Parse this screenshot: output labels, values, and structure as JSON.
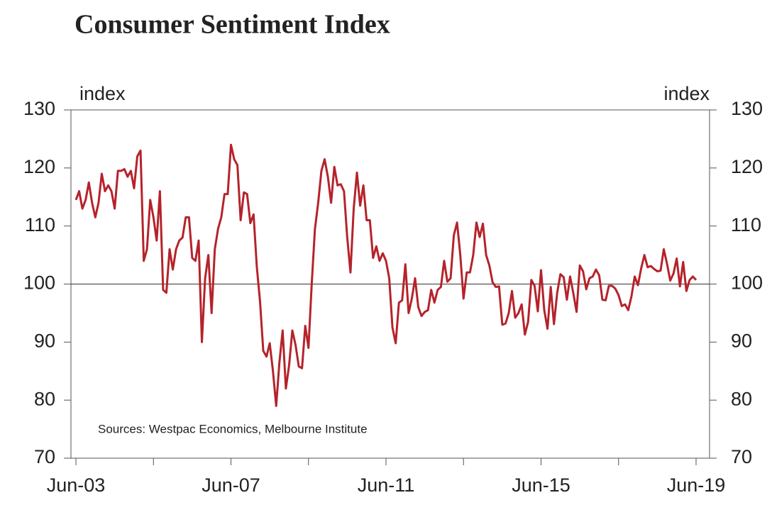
{
  "chart_data": {
    "type": "line",
    "title": "Consumer Sentiment Index",
    "ylabel": "index",
    "y2label": "index",
    "annotation": "Sources: Westpac Economics, Melbourne Institute",
    "categories": [
      "Jun-03",
      null,
      null,
      null,
      null,
      null,
      null,
      null,
      null,
      null,
      null,
      null,
      null,
      null,
      null,
      null,
      null,
      null,
      null,
      null,
      null,
      null,
      null,
      null,
      null,
      null,
      null,
      null,
      null,
      null,
      null,
      null,
      null,
      null,
      null,
      null,
      null,
      null,
      null,
      null,
      null,
      null,
      null,
      null,
      null,
      null,
      null,
      null,
      "Jun-07",
      null,
      null,
      null,
      null,
      null,
      null,
      null,
      null,
      null,
      null,
      null,
      null,
      null,
      null,
      null,
      null,
      null,
      null,
      null,
      null,
      null,
      null,
      null,
      null,
      null,
      null,
      null,
      null,
      null,
      null,
      null,
      null,
      null,
      null,
      null,
      null,
      null,
      null,
      null,
      null,
      null,
      null,
      null,
      null,
      null,
      null,
      null,
      "Jun-11",
      null,
      null,
      null,
      null,
      null,
      null,
      null,
      null,
      null,
      null,
      null,
      null,
      null,
      null,
      null,
      null,
      null,
      null,
      null,
      null,
      null,
      null,
      null,
      null,
      null,
      null,
      null,
      null,
      null,
      null,
      null,
      null,
      null,
      null,
      null,
      null,
      null,
      null,
      null,
      null,
      null,
      null,
      null,
      null,
      null,
      null,
      null,
      "Jun-15",
      null,
      null,
      null,
      null,
      null,
      null,
      null,
      null,
      null,
      null,
      null,
      null,
      null,
      null,
      null,
      null,
      null,
      null,
      null,
      null,
      null,
      null,
      null,
      null,
      null,
      null,
      null,
      null,
      null,
      null,
      null,
      null,
      null,
      null,
      null,
      null,
      null,
      null,
      null,
      null,
      null,
      null,
      null,
      null,
      null,
      null,
      null,
      "Jun-19"
    ],
    "values": [
      114.5,
      116,
      113,
      114.5,
      117.5,
      114,
      111.5,
      114,
      119,
      116,
      117,
      116,
      113,
      119.5,
      119.5,
      119.8,
      118.5,
      119.5,
      116.5,
      122,
      123,
      104,
      106,
      114.5,
      111.5,
      107.5,
      116,
      99,
      98.5,
      106,
      102.5,
      106,
      107.5,
      108,
      111.5,
      111.5,
      104.5,
      104,
      107.5,
      90,
      101,
      105,
      95,
      106,
      109.5,
      111.5,
      115.5,
      115.5,
      124,
      121.5,
      120.5,
      111,
      115.8,
      115.5,
      110.5,
      112,
      103,
      97,
      88.5,
      87.5,
      89.8,
      85,
      79,
      86.5,
      92,
      82,
      86,
      92,
      89.5,
      85.8,
      85.5,
      92.8,
      89,
      100,
      109.5,
      114,
      119.5,
      121.5,
      118.5,
      114,
      120.2,
      117,
      117.2,
      116,
      108,
      102,
      113,
      119.2,
      113.5,
      117,
      111,
      111,
      104.5,
      106.5,
      104,
      105.3,
      104,
      101,
      92.5,
      89.8,
      96.8,
      97.2,
      103.4,
      95,
      97.5,
      101,
      96,
      94.5,
      95.2,
      95.5,
      99,
      96.8,
      99,
      99.5,
      104,
      100.4,
      101,
      108.4,
      110.6,
      105,
      97.5,
      102,
      102,
      105,
      110.6,
      108.1,
      110.4,
      105,
      103.2,
      100.3,
      99.5,
      99.6,
      93,
      93.2,
      95,
      98.8,
      94.2,
      95,
      96.5,
      91.3,
      93.5,
      100.7,
      99.7,
      95.3,
      102.4,
      95.5,
      92.3,
      99.5,
      93.1,
      98.5,
      101.7,
      101.2,
      97.3,
      101.3,
      98.4,
      95.2,
      103.2,
      102.2,
      99.1,
      101,
      101.3,
      102.5,
      101.5,
      97.3,
      97.2,
      99.7,
      99.7,
      99.2,
      98.1,
      96.2,
      96.5,
      95.5,
      97.9,
      101.3,
      99.8,
      102.7,
      105,
      102.9,
      103.1,
      102.6,
      102.2,
      102.3,
      106,
      103.5,
      100.6,
      101.8,
      104.4,
      99.6,
      103.8,
      98.8,
      100.7,
      101.3,
      100.7
    ],
    "color": "#b5232b",
    "title_color": "#e8201f",
    "hline": 100,
    "ylim": [
      70,
      130
    ],
    "yticks": [
      70,
      80,
      90,
      100,
      110,
      120,
      130
    ],
    "y2lim": [
      70,
      130
    ],
    "y2ticks": [
      70,
      80,
      90,
      100,
      110,
      120,
      130
    ]
  }
}
